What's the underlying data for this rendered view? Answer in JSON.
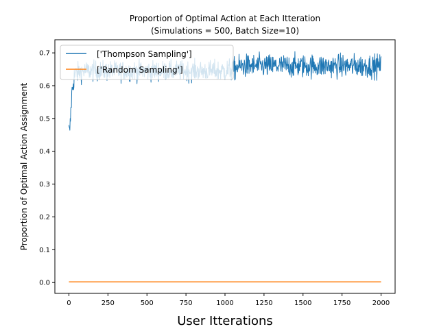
{
  "chart_data": {
    "type": "line",
    "title_line1": "Proportion of Optimal Action at Each Itteration",
    "title_line2": "(Simulations = 500, Batch Size=10)",
    "xlabel": "User Itterations",
    "ylabel": "Proportion of Optimal Action Assignment",
    "xlim": [
      -90,
      2090
    ],
    "ylim": [
      -0.033,
      0.74
    ],
    "xticks": [
      0,
      250,
      500,
      750,
      1000,
      1250,
      1500,
      1750,
      2000
    ],
    "yticks": [
      0.0,
      0.1,
      0.2,
      0.3,
      0.4,
      0.5,
      0.6,
      0.7
    ],
    "ytick_labels": [
      "0.0",
      "0.1",
      "0.2",
      "0.3",
      "0.4",
      "0.5",
      "0.6",
      "0.7"
    ],
    "grid": false,
    "legend_position": "top-left",
    "series": [
      {
        "name": "['Thompson Sampling']",
        "color": "#1f77b4",
        "noisy": true,
        "x": [
          0,
          5,
          10,
          15,
          20,
          30,
          40,
          60,
          100,
          200,
          300,
          400,
          500,
          600,
          700,
          800,
          900,
          1000,
          1050,
          1100,
          1200,
          1300,
          1400,
          1500,
          1600,
          1700,
          1800,
          1900,
          2000
        ],
        "y": [
          0.47,
          0.46,
          0.5,
          0.55,
          0.58,
          0.62,
          0.635,
          0.64,
          0.645,
          0.645,
          0.645,
          0.645,
          0.645,
          0.645,
          0.645,
          0.645,
          0.645,
          0.645,
          0.65,
          0.66,
          0.66,
          0.66,
          0.66,
          0.66,
          0.66,
          0.66,
          0.66,
          0.66,
          0.66
        ],
        "band": [
          0.02,
          0.02,
          0.03,
          0.04,
          0.04,
          0.04,
          0.035,
          0.03,
          0.03,
          0.03,
          0.03,
          0.03,
          0.03,
          0.03,
          0.03,
          0.03,
          0.03,
          0.035,
          0.035,
          0.035,
          0.035,
          0.035,
          0.035,
          0.035,
          0.035,
          0.035,
          0.035,
          0.035,
          0.035
        ]
      },
      {
        "name": "['Random Sampling']",
        "color": "#ff7f0e",
        "noisy": false,
        "x": [
          0,
          2000
        ],
        "y": [
          0.002,
          0.002
        ]
      }
    ]
  }
}
